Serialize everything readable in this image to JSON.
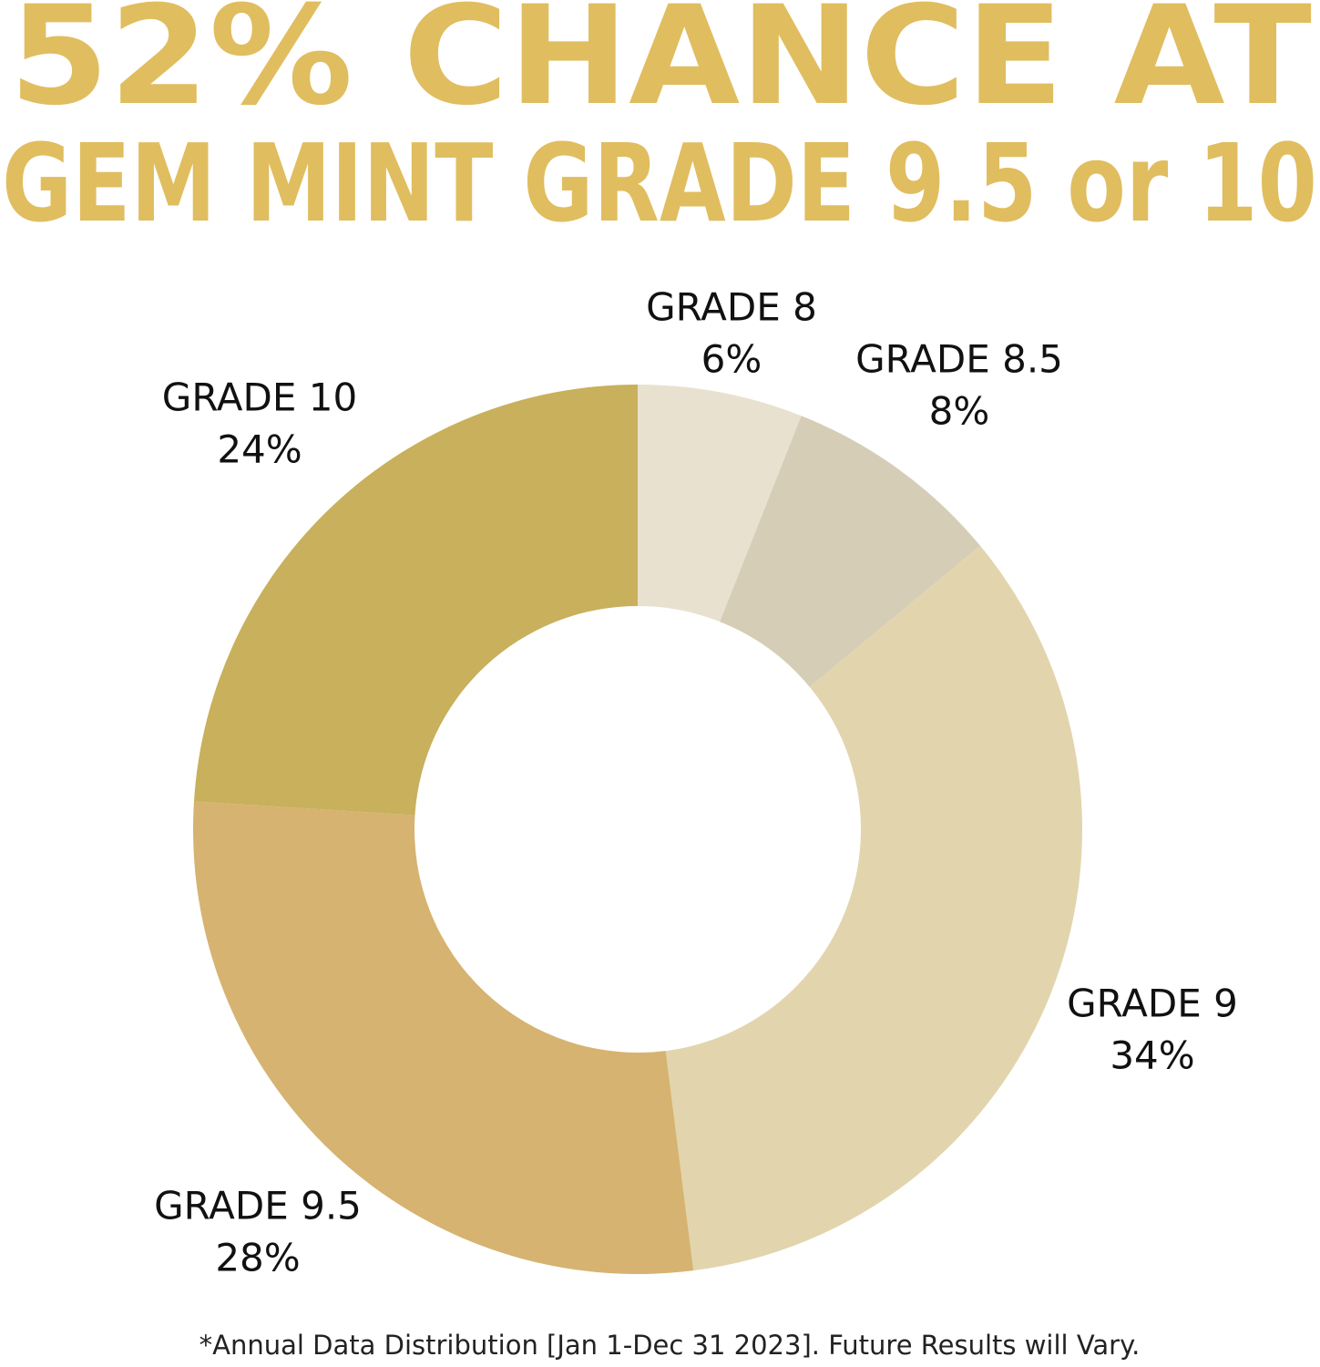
{
  "chart_data": {
    "type": "donut",
    "title_lines": [
      "52% CHANCE AT",
      "GEM MINT GRADE 9.5 or 10"
    ],
    "categories": [
      "GRADE 8",
      "GRADE 8.5",
      "GRADE 9",
      "GRADE 9.5",
      "GRADE 10"
    ],
    "values": [
      6,
      8,
      34,
      28,
      24
    ],
    "value_labels": [
      "6%",
      "8%",
      "34%",
      "28%",
      "24%"
    ],
    "colors": [
      "#e9e1cf",
      "#d5cdb6",
      "#e2d5ad",
      "#d6b370",
      "#c8b05c"
    ],
    "title_color": "#e0bd5f",
    "footnote": "*Annual Data Distribution [Jan 1-Dec 31 2023]. Future Results will Vary."
  }
}
